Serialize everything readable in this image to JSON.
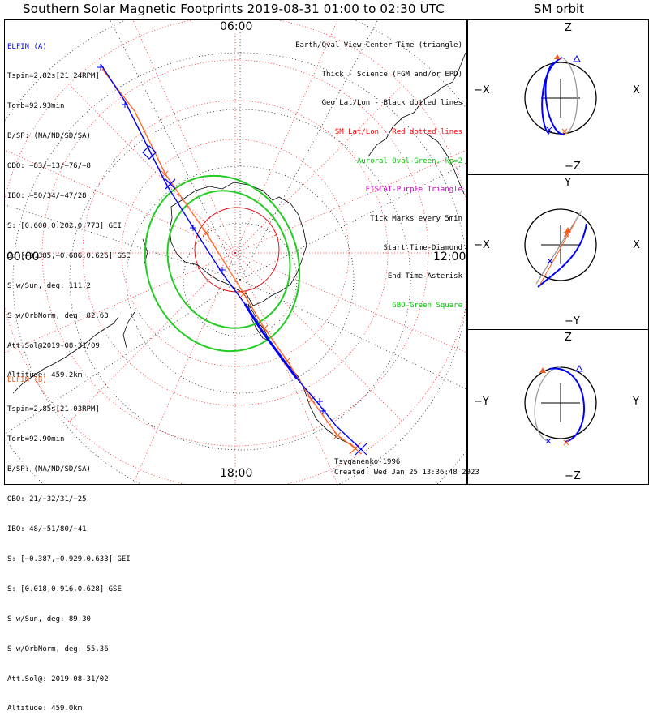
{
  "title": "Southern Solar Magnetic Footprints 2019-08-31 01:00 to 02:30 UTC",
  "side_title": "SM orbit",
  "clock_labels": {
    "top": "06:00",
    "left": "00:00",
    "right": "12:00",
    "bottom": "18:00"
  },
  "elfin_a": {
    "lines": [
      "ELFIN (A)",
      "Tspin=2.82s[21.24RPM]",
      "Torb=92.93min",
      "B/SP: (NA/ND/SD/SA)",
      "OBO: −83/−13/−76/−8",
      "IBO: −50/34/−47/28",
      "S: [0.600,0.202,0.773] GEI",
      "S: [−0.385,−0.686,0.626] GSE",
      "S w/Sun, deg: 111.2",
      "S w/OrbNorm, deg: 82.63",
      "Att.Sol@2019-08-31/09",
      "Altitude: 459.2km"
    ],
    "color": "#0000ff"
  },
  "elfin_b": {
    "lines": [
      "ELFIN (B)",
      "Tspin=2.85s[21.03RPM]",
      "Torb=92.90min",
      "B/SP: (NA/ND/SD/SA)",
      "OBO: 21/−32/31/−25",
      "IBO: 48/−51/80/−41",
      "S: [−0.387,−0.929,0.633] GEI",
      "S: [0.018,0.916,0.628] GSE",
      "S w/Sun, deg: 89.30",
      "S w/OrbNorm, deg: 55.36",
      "Att.Sol@: 2019-08-31/02",
      "Altitude: 459.0km"
    ],
    "color": "#ff5a1e"
  },
  "legend": [
    {
      "text": "Earth/Oval View Center Time (triangle)",
      "color": "#000000"
    },
    {
      "text": "Thick - Science (FGM and/or EPD)",
      "color": "#000000"
    },
    {
      "text": "Geo Lat/Lon - Black dotted lines",
      "color": "#000000"
    },
    {
      "text": "SM Lat/Lon - Red dotted lines",
      "color": "#ff0000"
    },
    {
      "text": "Auroral Oval-Green, kp=2",
      "color": "#00cc00"
    },
    {
      "text": "EISCAT-Purple Triangle",
      "color": "#c000c0"
    },
    {
      "text": "Tick Marks every 5min",
      "color": "#000000"
    },
    {
      "text": "Start Time-Diamond",
      "color": "#000000"
    },
    {
      "text": "End Time-Asterisk",
      "color": "#000000"
    },
    {
      "text": "GBO-Green Square",
      "color": "#00cc00"
    }
  ],
  "footer": {
    "model": "Tsyganenko-1996",
    "created": "Created: Wed Jan 25 13:36:48 2023"
  },
  "orbit_panels": [
    {
      "top": "Z",
      "bottom": "−Z",
      "left": "−X",
      "right": "X"
    },
    {
      "top": "Y",
      "bottom": "−Y",
      "left": "−X",
      "right": "X"
    },
    {
      "top": "Z",
      "bottom": "−Z",
      "left": "−Y",
      "right": "Y"
    }
  ],
  "chart_data": {
    "type": "scatter",
    "projection": "polar-stereographic-south",
    "colors": {
      "elfin_a": "#0000ff",
      "elfin_b": "#ff5a1e",
      "auroral_oval": "#00cc00",
      "sm_grid": "#ff0000",
      "geo_grid": "#000000"
    }
  }
}
